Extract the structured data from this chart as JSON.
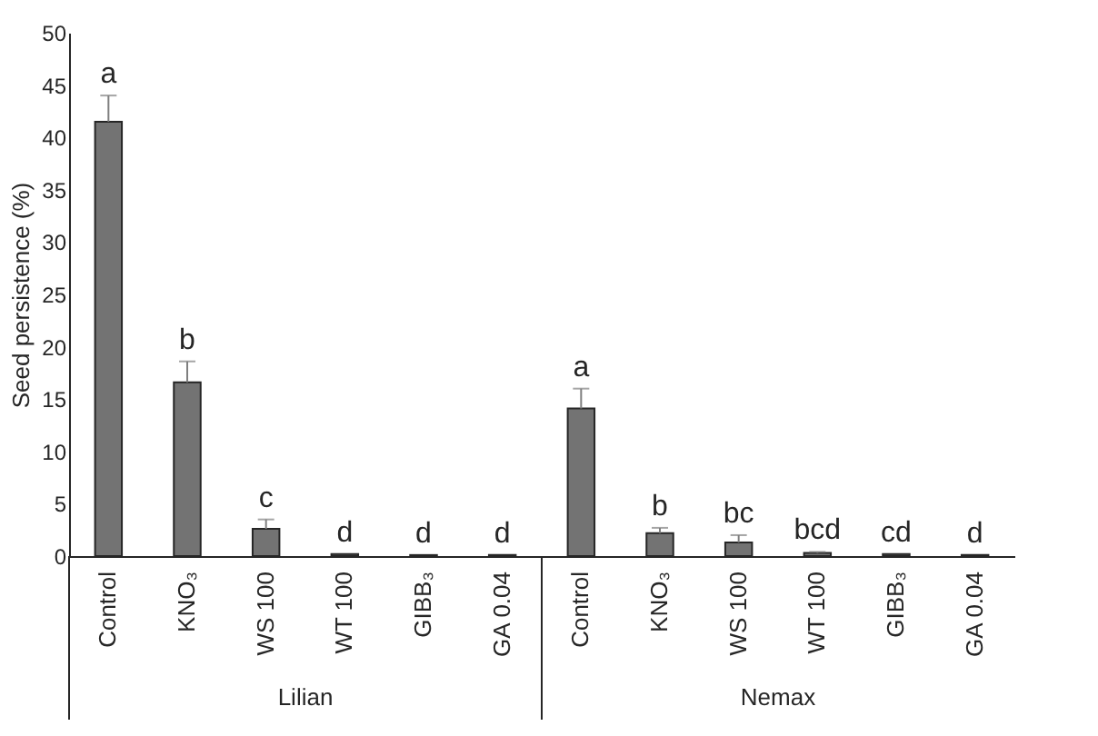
{
  "chart_data": {
    "type": "bar",
    "ylabel": "Seed persistence (%)",
    "categories": [
      "Control",
      "KNO₃",
      "WS 100",
      "WT 100",
      "GIBB₃",
      "GA 0.04",
      "Control",
      "KNO₃",
      "WS 100",
      "WT 100",
      "GIBB₃",
      "GA 0.04"
    ],
    "values": [
      41.5,
      16.6,
      2.6,
      0.2,
      0.1,
      0.1,
      14.1,
      2.2,
      1.3,
      0.3,
      0.2,
      0.1
    ],
    "errors": [
      2.5,
      2.0,
      0.9,
      null,
      null,
      null,
      1.9,
      0.5,
      0.7,
      0.1,
      null,
      null
    ],
    "value_labels": [
      "a",
      "b",
      "c",
      "d",
      "d",
      "d",
      "a",
      "b",
      "bc",
      "bcd",
      "cd",
      "d"
    ],
    "annotations": [
      "Lilian",
      "Nemax"
    ],
    "color": "#737373",
    "ylim": [
      0,
      50
    ],
    "yticks": [
      0,
      5,
      10,
      15,
      20,
      25,
      30,
      35,
      40,
      45,
      50
    ],
    "grid": false
  }
}
